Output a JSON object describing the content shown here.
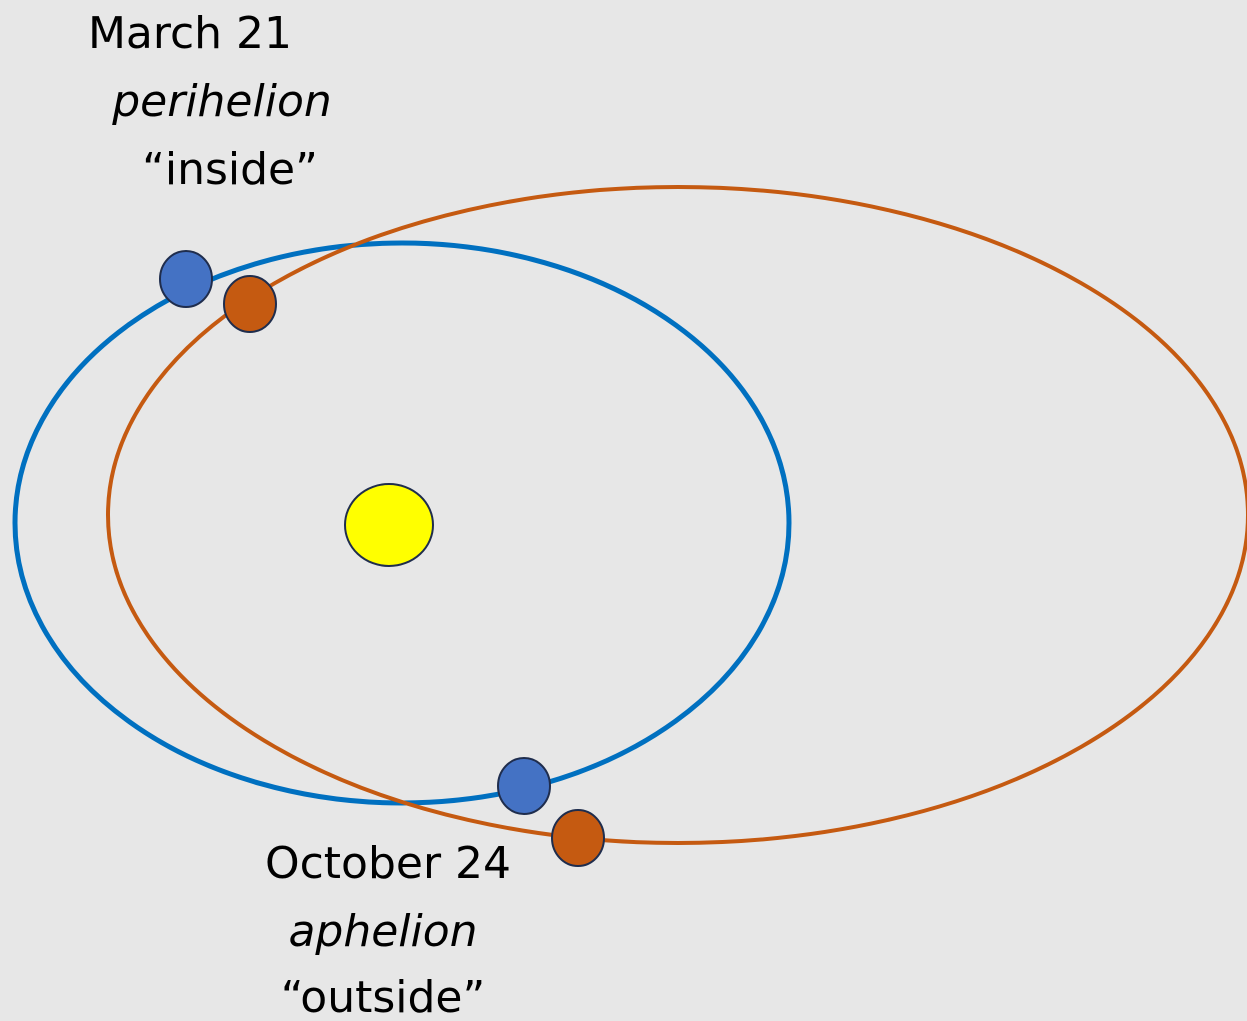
{
  "labels": [
    {
      "date": "March 21",
      "term": "perihelion",
      "note": "“inside”"
    },
    {
      "date": "October 24",
      "term": "aphelion",
      "note": "“outside”"
    }
  ]
}
